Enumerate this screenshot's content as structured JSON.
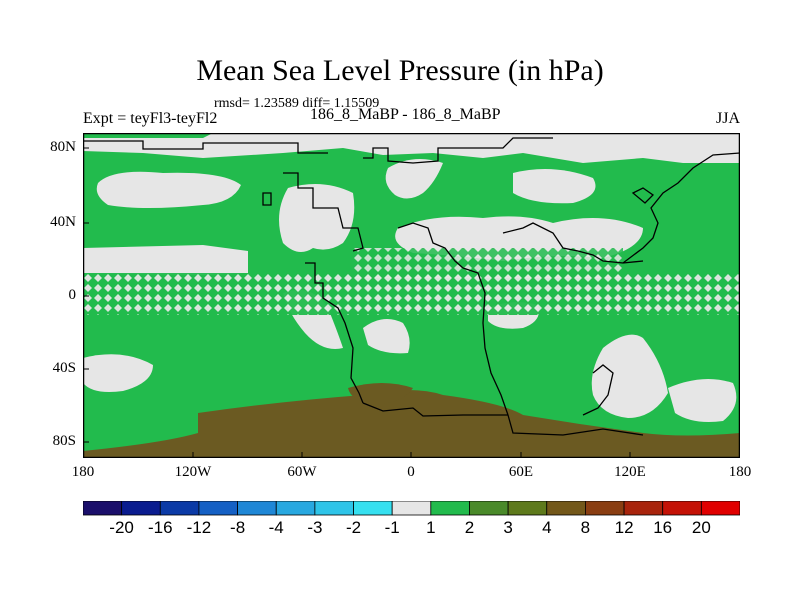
{
  "title": "Mean Sea Level Pressure (in hPa)",
  "stats": "rmsd= 1.23589 diff= 1.15509",
  "expt": "Expt = teyFl3-teyFl2",
  "period": "186_8_MaBP - 186_8_MaBP",
  "season": "JJA",
  "y_ticks": [
    "80N",
    "40N",
    "0",
    "40S",
    "80S"
  ],
  "x_ticks": [
    "180",
    "120W",
    "60W",
    "0",
    "60E",
    "120E",
    "180"
  ],
  "colorbar": {
    "labels": [
      "-20",
      "-16",
      "-12",
      "-8",
      "-4",
      "-3",
      "-2",
      "-1",
      "1",
      "2",
      "3",
      "4",
      "8",
      "12",
      "16",
      "20"
    ],
    "colors": [
      "#1b0f6b",
      "#0a1c8f",
      "#0b3aa6",
      "#1560c4",
      "#1f87d6",
      "#28a8e0",
      "#2ec4e8",
      "#36e0f0",
      "#e6e6e6",
      "#22bb4d",
      "#4a8a2a",
      "#5e7a1c",
      "#73581a",
      "#8a3e12",
      "#a8240c",
      "#c41206",
      "#e00000"
    ]
  },
  "map_colors": {
    "positive_1_2": "#22bb4d",
    "near_zero": "#e6e6e6",
    "positive_3_4": "#6b5a22"
  }
}
